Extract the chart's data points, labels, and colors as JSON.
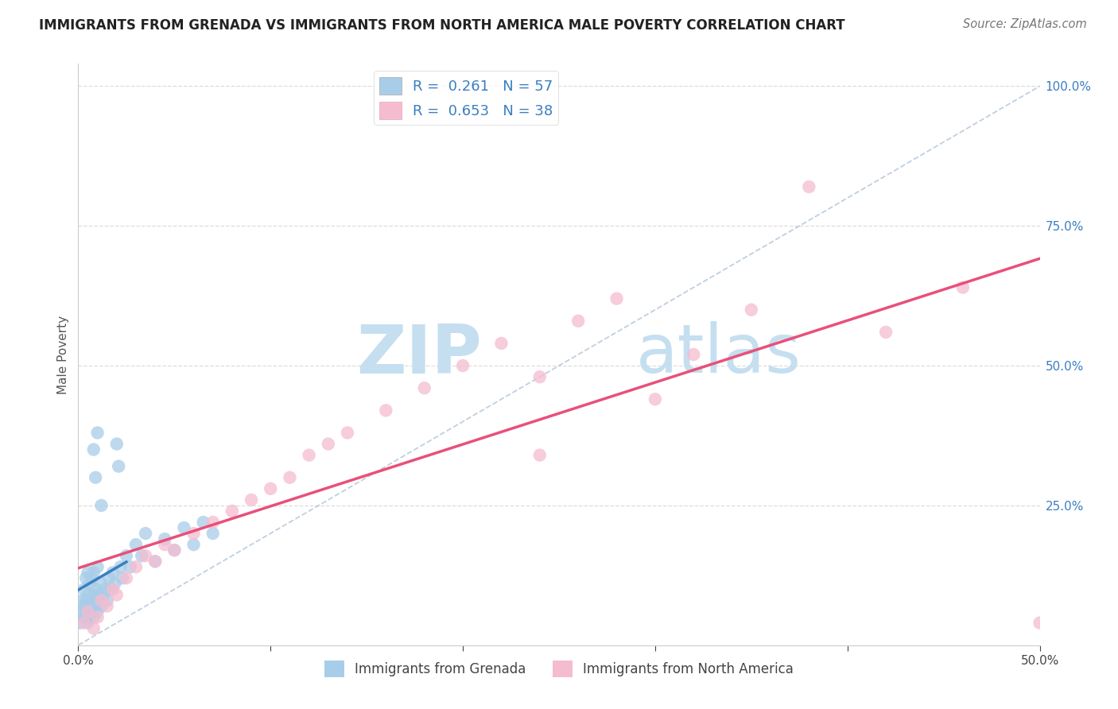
{
  "title": "IMMIGRANTS FROM GRENADA VS IMMIGRANTS FROM NORTH AMERICA MALE POVERTY CORRELATION CHART",
  "source": "Source: ZipAtlas.com",
  "ylabel": "Male Poverty",
  "xlim": [
    0.0,
    0.5
  ],
  "ylim": [
    0.0,
    1.04
  ],
  "xticks": [
    0.0,
    0.1,
    0.2,
    0.3,
    0.4,
    0.5
  ],
  "xticklabels": [
    "0.0%",
    "",
    "",
    "",
    "",
    "50.0%"
  ],
  "yticks_right": [
    0.0,
    0.25,
    0.5,
    0.75,
    1.0
  ],
  "yticklabels_right": [
    "",
    "25.0%",
    "50.0%",
    "75.0%",
    "100.0%"
  ],
  "color_blue": "#a8cde8",
  "color_blue_line": "#3a7fc1",
  "color_pink": "#f5bcd0",
  "color_pink_line": "#e8507a",
  "color_diag": "#b0c4d8",
  "watermark_zip": "ZIP",
  "watermark_atlas": "atlas",
  "legend_top_R_blue": "0.261",
  "legend_top_N_blue": "57",
  "legend_top_R_pink": "0.653",
  "legend_top_N_pink": "38",
  "legend_bottom_label1": "Immigrants from Grenada",
  "legend_bottom_label2": "Immigrants from North America",
  "blue_x": [
    0.001,
    0.002,
    0.002,
    0.003,
    0.003,
    0.003,
    0.004,
    0.004,
    0.004,
    0.005,
    0.005,
    0.005,
    0.005,
    0.006,
    0.006,
    0.006,
    0.007,
    0.007,
    0.007,
    0.008,
    0.008,
    0.008,
    0.009,
    0.009,
    0.01,
    0.01,
    0.01,
    0.011,
    0.012,
    0.012,
    0.013,
    0.014,
    0.015,
    0.016,
    0.017,
    0.018,
    0.019,
    0.02,
    0.021,
    0.022,
    0.023,
    0.025,
    0.027,
    0.03,
    0.033,
    0.035,
    0.04,
    0.045,
    0.05,
    0.055,
    0.06,
    0.065,
    0.07,
    0.008,
    0.009,
    0.01,
    0.012
  ],
  "blue_y": [
    0.04,
    0.06,
    0.08,
    0.05,
    0.07,
    0.1,
    0.06,
    0.08,
    0.12,
    0.04,
    0.06,
    0.09,
    0.13,
    0.05,
    0.07,
    0.11,
    0.06,
    0.08,
    0.12,
    0.05,
    0.09,
    0.13,
    0.07,
    0.1,
    0.06,
    0.09,
    0.14,
    0.08,
    0.07,
    0.11,
    0.09,
    0.1,
    0.08,
    0.12,
    0.1,
    0.13,
    0.11,
    0.36,
    0.32,
    0.14,
    0.12,
    0.16,
    0.14,
    0.18,
    0.16,
    0.2,
    0.15,
    0.19,
    0.17,
    0.21,
    0.18,
    0.22,
    0.2,
    0.35,
    0.3,
    0.38,
    0.25
  ],
  "pink_x": [
    0.003,
    0.005,
    0.008,
    0.01,
    0.012,
    0.015,
    0.018,
    0.02,
    0.025,
    0.03,
    0.035,
    0.04,
    0.045,
    0.05,
    0.06,
    0.07,
    0.08,
    0.09,
    0.1,
    0.11,
    0.12,
    0.13,
    0.14,
    0.16,
    0.18,
    0.2,
    0.22,
    0.24,
    0.26,
    0.28,
    0.3,
    0.32,
    0.35,
    0.38,
    0.42,
    0.46,
    0.24,
    0.5
  ],
  "pink_y": [
    0.04,
    0.06,
    0.03,
    0.05,
    0.08,
    0.07,
    0.1,
    0.09,
    0.12,
    0.14,
    0.16,
    0.15,
    0.18,
    0.17,
    0.2,
    0.22,
    0.24,
    0.26,
    0.28,
    0.3,
    0.34,
    0.36,
    0.38,
    0.42,
    0.46,
    0.5,
    0.54,
    0.34,
    0.58,
    0.62,
    0.44,
    0.52,
    0.6,
    0.82,
    0.56,
    0.64,
    0.48,
    0.04
  ]
}
